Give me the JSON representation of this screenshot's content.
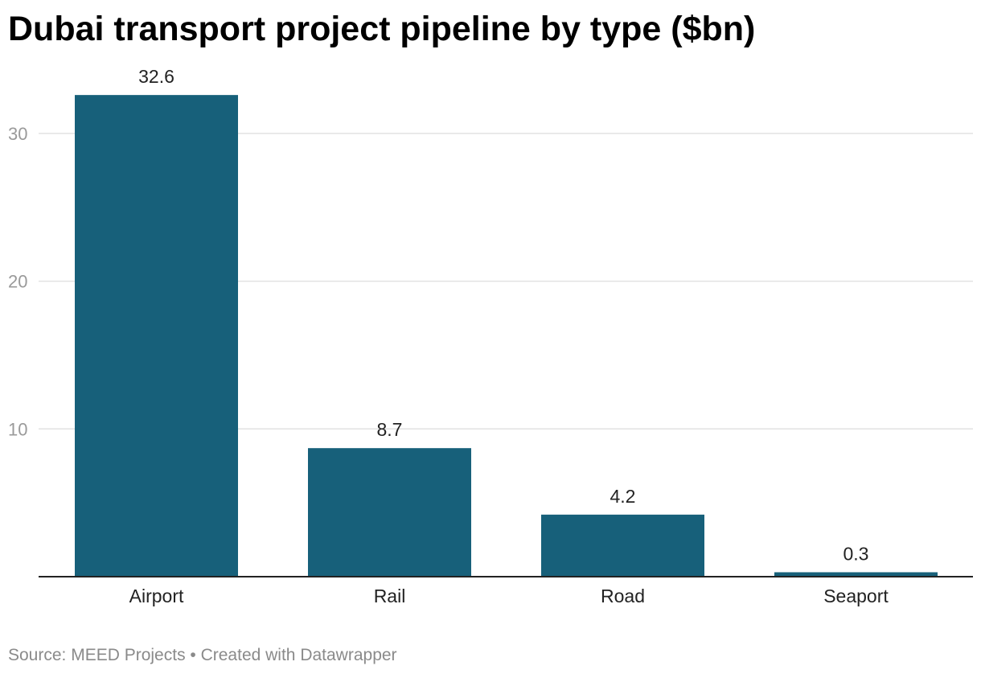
{
  "header": {
    "title": "Dubai transport project pipeline by type ($bn)"
  },
  "footer": {
    "source": "Source: MEED Projects • Created with Datawrapper"
  },
  "colors": {
    "bar": "#17607a",
    "gridline": "#e2e2e2",
    "baseline": "#222222"
  },
  "chart_data": {
    "type": "bar",
    "title": "Dubai transport project pipeline by type ($bn)",
    "categories": [
      "Airport",
      "Rail",
      "Road",
      "Seaport"
    ],
    "values": [
      32.6,
      8.7,
      4.2,
      0.3
    ],
    "value_labels": [
      "32.6",
      "8.7",
      "4.2",
      "0.3"
    ],
    "xlabel": "",
    "ylabel": "",
    "ylim": [
      0,
      35
    ],
    "yticks": [
      10,
      20,
      30
    ],
    "ytick_labels": [
      "10",
      "20",
      "30"
    ],
    "grid": true
  }
}
